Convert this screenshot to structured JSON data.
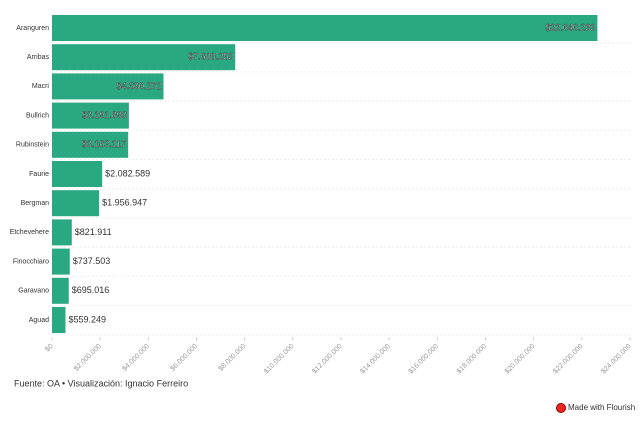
{
  "chart_data": {
    "type": "bar",
    "orientation": "horizontal",
    "categories": [
      "Aranguren",
      "Arribas",
      "Macri",
      "Bullrich",
      "Rubinstein",
      "Faurie",
      "Bergman",
      "Etchevehere",
      "Finocchiaro",
      "Garavano",
      "Aguad"
    ],
    "values": [
      22646233,
      7608253,
      4630272,
      3191893,
      3163117,
      2082589,
      1956947,
      821911,
      737503,
      695016,
      559249
    ],
    "value_labels": [
      "$22.646.233",
      "$7.608.253",
      "$4.630.272",
      "$3.191.893",
      "$3.163.117",
      "$2.082.589",
      "$1.956.947",
      "$821.911",
      "$737.503",
      "$695.016",
      "$559.249"
    ],
    "color": "#2aa882",
    "xlim": [
      0,
      24000000
    ],
    "xticks": [
      {
        "value": 0,
        "label": "$0"
      },
      {
        "value": 2000000,
        "label": "$2.000.000"
      },
      {
        "value": 4000000,
        "label": "$4.000.000"
      },
      {
        "value": 6000000,
        "label": "$6.000.000"
      },
      {
        "value": 8000000,
        "label": "$8.000.000"
      },
      {
        "value": 10000000,
        "label": "$10.000.000"
      },
      {
        "value": 12000000,
        "label": "$12.000.000"
      },
      {
        "value": 14000000,
        "label": "$14.000.000"
      },
      {
        "value": 16000000,
        "label": "$16.000.000"
      },
      {
        "value": 18000000,
        "label": "$18.000.000"
      },
      {
        "value": 20000000,
        "label": "$20.000.000"
      },
      {
        "value": 22000000,
        "label": "$22.000.000"
      },
      {
        "value": 24000000,
        "label": "$24.000.000"
      }
    ],
    "source": "Fuente: OA • Visualización: Ignacio Ferreiro",
    "credit": "Made with Flourish"
  }
}
